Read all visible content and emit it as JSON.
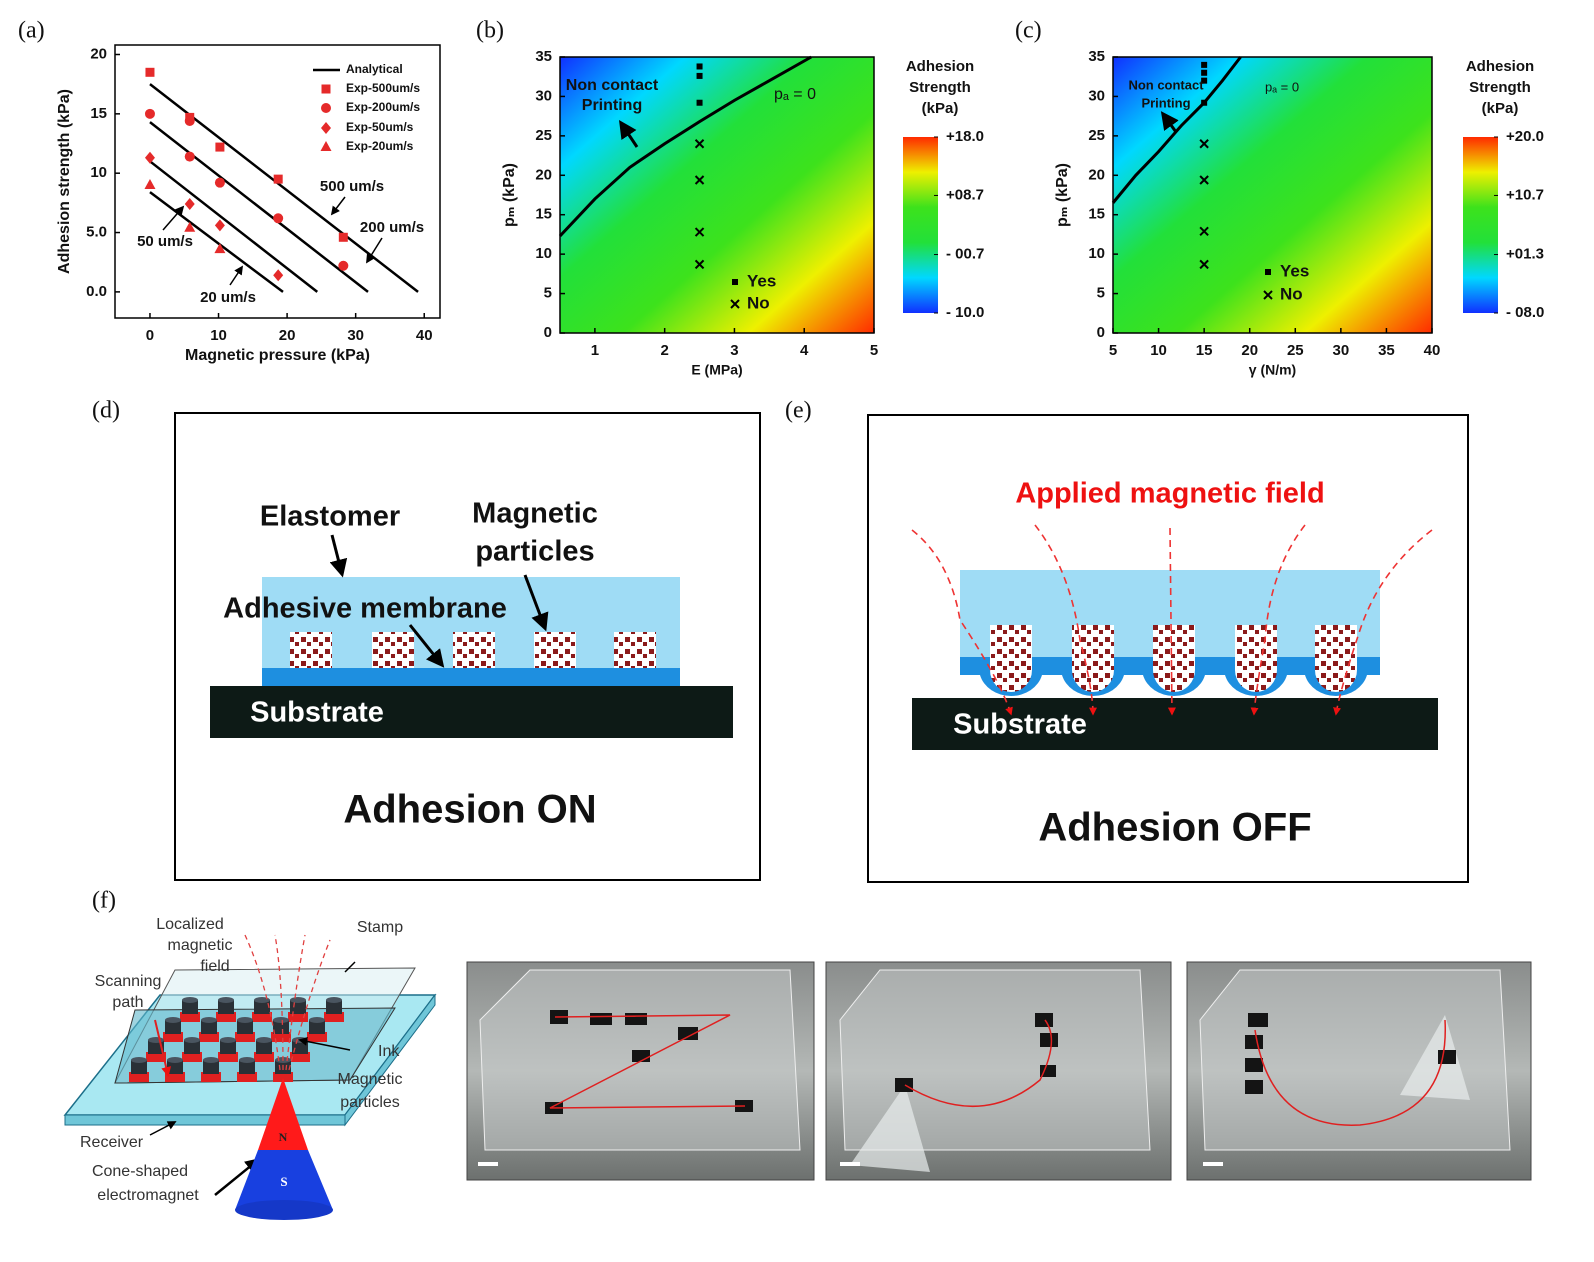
{
  "chart_data": [
    {
      "type": "scatter",
      "label": "(a)",
      "x_label": "Magnetic pressure (kPa)",
      "y_label": "Adhesion strength (kPa)",
      "xlim": [
        -5.1,
        42.3
      ],
      "ylim": [
        -2.2,
        20.8
      ],
      "xticks": [
        0,
        10,
        20,
        30,
        40
      ],
      "yticks": [
        {
          "value": 0,
          "label": "0.0"
        },
        {
          "value": 5,
          "label": "5.0"
        },
        10,
        15,
        20
      ],
      "series": [
        {
          "name": "Analytical",
          "color": "#000000",
          "lines": [
            {
              "x": [
                0,
                39.1
              ],
              "values": [
                17.5,
                0
              ]
            },
            {
              "x": [
                0,
                31.8
              ],
              "values": [
                14.3,
                0
              ]
            },
            {
              "x": [
                0,
                24.4
              ],
              "values": [
                11,
                0
              ]
            },
            {
              "x": [
                0,
                19.4
              ],
              "values": [
                8.4,
                0
              ]
            }
          ]
        },
        {
          "name": "Exp-500um/s",
          "color": "#e52a2a",
          "marker": "square",
          "x": [
            0,
            5.8,
            10.2,
            18.7,
            28.2
          ],
          "values": [
            18.5,
            14.7,
            12.2,
            9.5,
            4.6
          ]
        },
        {
          "name": "Exp-200um/s",
          "color": "#e52a2a",
          "marker": "circle",
          "x": [
            0,
            5.8,
            5.8,
            10.2,
            18.7,
            28.2
          ],
          "values": [
            15,
            14.4,
            11.4,
            9.2,
            6.2,
            2.2
          ]
        },
        {
          "name": "Exp-50um/s",
          "color": "#e52a2a",
          "marker": "diamond",
          "x": [
            0,
            5.8,
            10.2,
            18.7
          ],
          "values": [
            11.3,
            7.4,
            5.6,
            1.4
          ]
        },
        {
          "name": "Exp-20um/s",
          "color": "#e52a2a",
          "marker": "triangle",
          "x": [
            0,
            5.8,
            10.2
          ],
          "values": [
            9,
            5.4,
            3.6
          ]
        }
      ],
      "annotations": [
        "500 um/s",
        "200 um/s",
        "50 um/s",
        "20 um/s"
      ]
    },
    {
      "type": "contour",
      "label": "(b)",
      "x_label": "E (MPa)",
      "y_label": "pₘ (kPa)",
      "xlim": [
        0.5,
        5
      ],
      "ylim": [
        0,
        35
      ],
      "xticks": [
        1,
        2,
        3,
        4,
        5
      ],
      "yticks": [
        0,
        5,
        10,
        15,
        20,
        25,
        30,
        35
      ],
      "colormap": [
        "#1030ff",
        "#00d8ff",
        "#22e03a",
        "#3de21c",
        "#eef000",
        "#ff2a00"
      ],
      "clim": [
        -10,
        18
      ],
      "cticks": [
        {
          "value": 18,
          "label": "+18.0"
        },
        {
          "value": 8.7,
          "label": "+08.7"
        },
        {
          "value": -0.7,
          "label": "- 00.7"
        },
        {
          "value": -10,
          "label": "- 10.0"
        }
      ],
      "colorbar_title": [
        "Adhesion",
        "Strength",
        "(kPa)"
      ],
      "contour": {
        "x": [
          0.5,
          1,
          1.5,
          2,
          2.5,
          3,
          3.5,
          4.1
        ],
        "values": [
          12.3,
          17,
          21,
          24,
          26.8,
          29.5,
          32,
          35
        ]
      },
      "series": [
        {
          "name": "Yes",
          "marker": "square",
          "color": "#000000",
          "x": [
            2.5,
            2.5,
            2.5
          ],
          "values": [
            33.8,
            32.6,
            29.2
          ]
        },
        {
          "name": "No",
          "marker": "cross",
          "color": "#000000",
          "x": [
            2.5,
            2.5,
            2.5,
            2.5
          ],
          "values": [
            24,
            19.4,
            12.8,
            8.7
          ]
        }
      ],
      "annotations": [
        "Non contact",
        "Printing",
        "pₐ = 0"
      ]
    },
    {
      "type": "contour",
      "label": "(c)",
      "x_label": "γ (N/m)",
      "y_label": "pₘ (kPa)",
      "xlim": [
        5,
        40
      ],
      "ylim": [
        0,
        35
      ],
      "xticks": [
        5,
        10,
        15,
        20,
        25,
        30,
        35,
        40
      ],
      "yticks": [
        0,
        5,
        10,
        15,
        20,
        25,
        30,
        35
      ],
      "colormap": [
        "#1030ff",
        "#00d8ff",
        "#22e03a",
        "#3de21c",
        "#eef000",
        "#ff2a00"
      ],
      "clim": [
        -8,
        20
      ],
      "cticks": [
        {
          "value": 20,
          "label": "+20.0"
        },
        {
          "value": 10.7,
          "label": "+10.7"
        },
        {
          "value": 1.3,
          "label": "+01.3"
        },
        {
          "value": -8,
          "label": "- 08.0"
        }
      ],
      "colorbar_title": [
        "Adhesion",
        "Strength",
        "(kPa)"
      ],
      "contour": {
        "x": [
          5,
          7.5,
          10,
          12.5,
          15,
          17,
          19
        ],
        "values": [
          16.5,
          20,
          23,
          26.3,
          29.2,
          32,
          35
        ]
      },
      "series": [
        {
          "name": "Yes",
          "marker": "square",
          "color": "#000000",
          "x": [
            15,
            15,
            15,
            15
          ],
          "values": [
            34,
            33,
            32,
            29.2
          ]
        },
        {
          "name": "No",
          "marker": "cross",
          "color": "#000000",
          "x": [
            15,
            15,
            15,
            15
          ],
          "values": [
            24,
            19.4,
            12.9,
            8.7
          ]
        }
      ],
      "annotations": [
        "Non contact",
        "Printing",
        "pₐ = 0"
      ]
    }
  ],
  "panel_d": {
    "label": "(d)",
    "elastomer": "Elastomer",
    "particles": [
      "Magnetic",
      "particles"
    ],
    "membrane": "Adhesive membrane",
    "substrate": "Substrate",
    "caption": "Adhesion ON"
  },
  "panel_e": {
    "label": "(e)",
    "field": "Applied magnetic field",
    "substrate": "Substrate",
    "caption": "Adhesion OFF"
  },
  "panel_f": {
    "label": "(f)",
    "localized": [
      "Localized",
      "magnetic",
      "field"
    ],
    "stamp": "Stamp",
    "scanning": [
      "Scanning",
      "path"
    ],
    "ink": "Ink",
    "particles": [
      "Magnetic",
      "particles"
    ],
    "receiver": "Receiver",
    "electromagnet": [
      "Cone-shaped",
      "electromagnet"
    ],
    "north": "N",
    "south": "S"
  }
}
